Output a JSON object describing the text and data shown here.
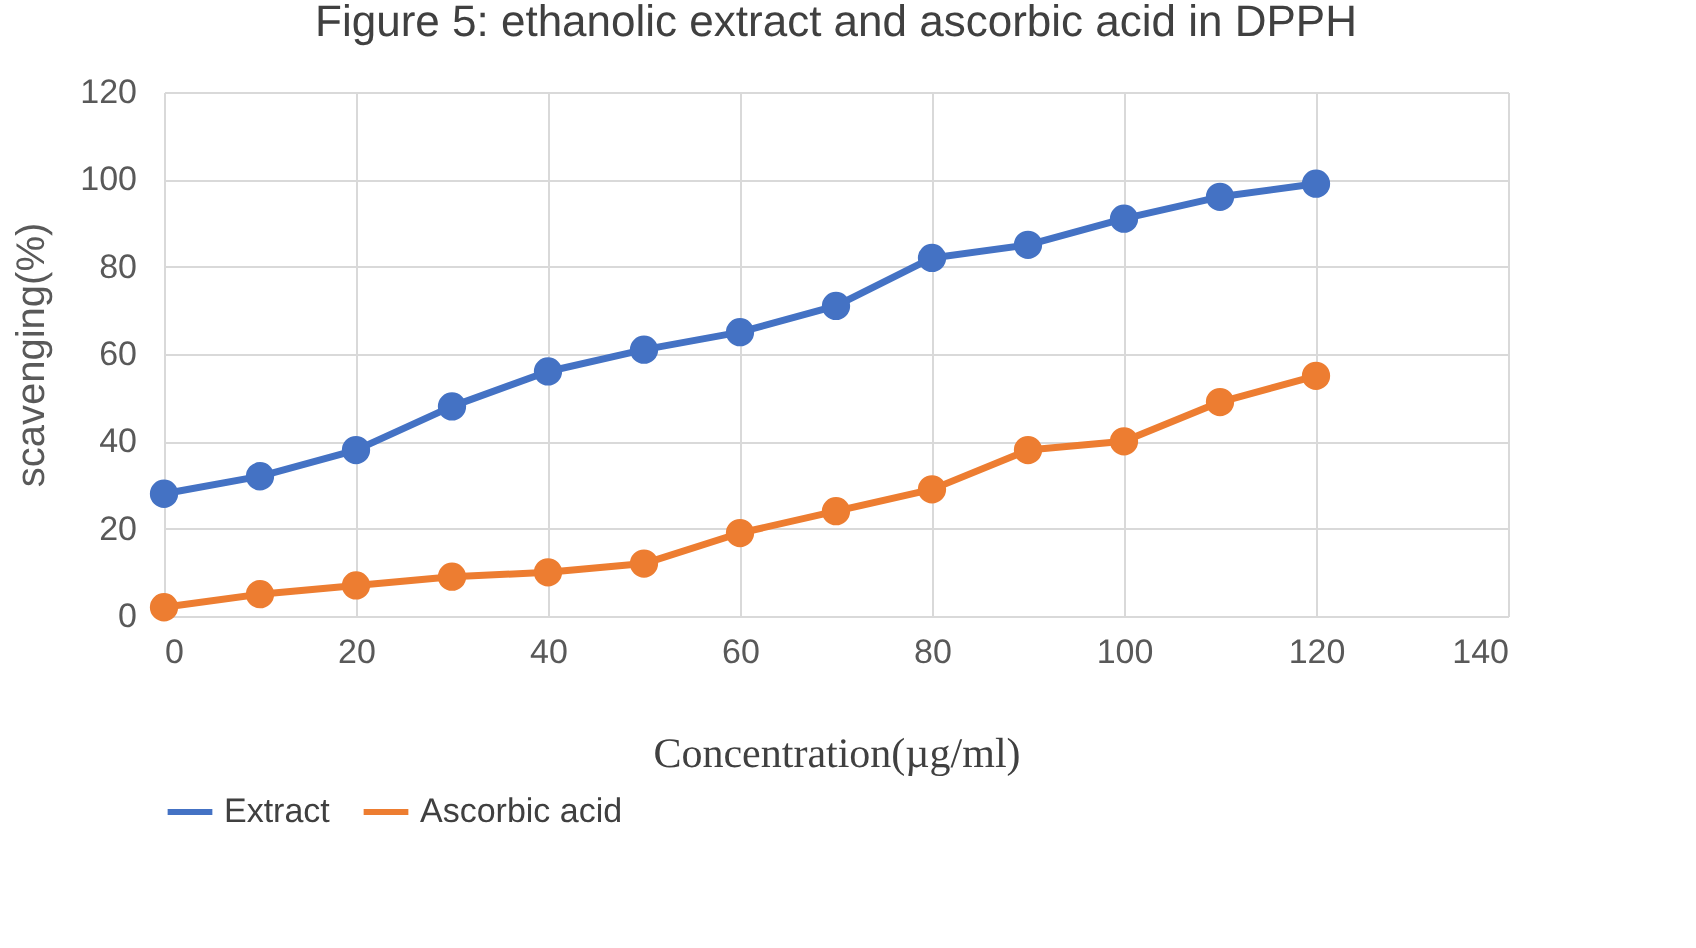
{
  "chart_data": {
    "type": "line",
    "title": "Figure 5: ethanolic extract and ascorbic acid in DPPH",
    "xlabel": "Concentration(µg/ml)",
    "ylabel": "scavenging(%)",
    "x": [
      0,
      10,
      20,
      30,
      40,
      50,
      60,
      70,
      80,
      90,
      100,
      110,
      120
    ],
    "series": [
      {
        "name": "Extract",
        "color": "#4472c4",
        "values": [
          28,
          32,
          38,
          48,
          56,
          61,
          65,
          71,
          82,
          85,
          91,
          96,
          99
        ]
      },
      {
        "name": "Ascorbic acid",
        "color": "#ed7d31",
        "values": [
          2,
          5,
          7,
          9,
          10,
          12,
          19,
          24,
          29,
          38,
          40,
          49,
          55
        ]
      }
    ],
    "xlim": [
      0,
      140
    ],
    "xticks": [
      0,
      20,
      40,
      60,
      80,
      100,
      120,
      140
    ],
    "ylim": [
      0,
      120
    ],
    "yticks": [
      0,
      20,
      40,
      60,
      80,
      100,
      120
    ],
    "grid": true,
    "legend": "bottom",
    "marker": "circle",
    "line_style": "solid"
  }
}
